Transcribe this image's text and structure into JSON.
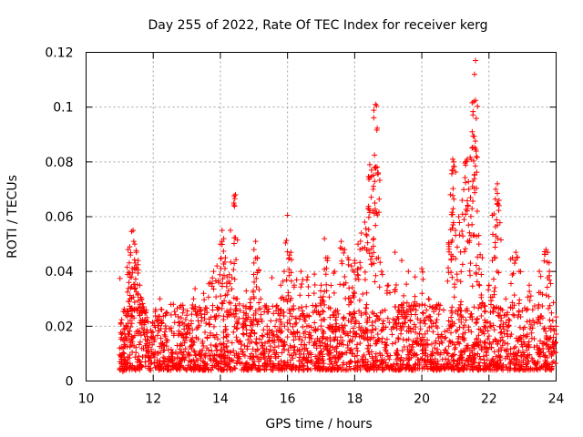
{
  "chart_data": {
    "type": "scatter",
    "title": "Day 255 of 2022, Rate Of TEC Index for receiver kerg",
    "xlabel": "GPS time / hours",
    "ylabel": "ROTI / TECUs",
    "xlim": [
      10,
      24
    ],
    "ylim": [
      0,
      0.12
    ],
    "xticks": [
      10,
      12,
      14,
      16,
      18,
      20,
      22,
      24
    ],
    "xtick_labels": [
      "10",
      "12",
      "14",
      "16",
      "18",
      "20",
      "22",
      "24"
    ],
    "yticks": [
      0,
      0.02,
      0.04,
      0.06,
      0.08,
      0.1,
      0.12
    ],
    "ytick_labels": [
      "0",
      "0.02",
      "0.04",
      "0.06",
      "0.08",
      "0.1",
      "0.12"
    ],
    "grid": true,
    "marker": "plus",
    "color": "#ff0000",
    "series": [
      {
        "name": "ROTI",
        "points": [
          [
            11.0,
            0.012
          ],
          [
            11.05,
            0.008
          ],
          [
            11.1,
            0.015
          ],
          [
            11.15,
            0.006
          ],
          [
            11.2,
            0.02
          ],
          [
            11.25,
            0.048
          ],
          [
            11.3,
            0.049
          ],
          [
            11.32,
            0.046
          ],
          [
            11.35,
            0.038
          ],
          [
            11.4,
            0.055
          ],
          [
            11.42,
            0.051
          ],
          [
            11.45,
            0.05
          ],
          [
            11.5,
            0.047
          ],
          [
            11.55,
            0.044
          ],
          [
            11.6,
            0.035
          ],
          [
            11.65,
            0.03
          ],
          [
            11.7,
            0.026
          ],
          [
            11.75,
            0.022
          ],
          [
            11.8,
            0.018
          ],
          [
            11.9,
            0.014
          ],
          [
            12.0,
            0.016
          ],
          [
            12.1,
            0.022
          ],
          [
            12.2,
            0.03
          ],
          [
            12.4,
            0.025
          ],
          [
            12.6,
            0.028
          ],
          [
            12.8,
            0.027
          ],
          [
            13.0,
            0.024
          ],
          [
            13.2,
            0.03
          ],
          [
            13.5,
            0.032
          ],
          [
            13.7,
            0.036
          ],
          [
            13.8,
            0.04
          ],
          [
            13.9,
            0.042
          ],
          [
            14.0,
            0.05
          ],
          [
            14.05,
            0.055
          ],
          [
            14.1,
            0.052
          ],
          [
            14.15,
            0.045
          ],
          [
            14.2,
            0.038
          ],
          [
            14.3,
            0.055
          ],
          [
            14.4,
            0.065
          ],
          [
            14.45,
            0.068
          ],
          [
            14.5,
            0.03
          ],
          [
            14.7,
            0.025
          ],
          [
            14.9,
            0.03
          ],
          [
            15.0,
            0.048
          ],
          [
            15.05,
            0.051
          ],
          [
            15.1,
            0.045
          ],
          [
            15.2,
            0.03
          ],
          [
            15.5,
            0.022
          ],
          [
            15.8,
            0.035
          ],
          [
            15.9,
            0.04
          ],
          [
            16.0,
            0.0605
          ],
          [
            16.05,
            0.045
          ],
          [
            16.1,
            0.047
          ],
          [
            16.2,
            0.035
          ],
          [
            16.4,
            0.04
          ],
          [
            16.6,
            0.038
          ],
          [
            16.8,
            0.039
          ],
          [
            17.0,
            0.035
          ],
          [
            17.1,
            0.052
          ],
          [
            17.2,
            0.045
          ],
          [
            17.4,
            0.04
          ],
          [
            17.6,
            0.051
          ],
          [
            17.7,
            0.048
          ],
          [
            17.8,
            0.045
          ],
          [
            17.9,
            0.042
          ],
          [
            18.0,
            0.044
          ],
          [
            18.1,
            0.05
          ],
          [
            18.2,
            0.054
          ],
          [
            18.3,
            0.058
          ],
          [
            18.4,
            0.063
          ],
          [
            18.45,
            0.079
          ],
          [
            18.5,
            0.077
          ],
          [
            18.55,
            0.07
          ],
          [
            18.6,
            0.065
          ],
          [
            18.62,
            0.101
          ],
          [
            18.65,
            0.1005
          ],
          [
            18.7,
            0.076
          ],
          [
            18.8,
            0.04
          ],
          [
            19.0,
            0.035
          ],
          [
            19.2,
            0.047
          ],
          [
            19.4,
            0.044
          ],
          [
            19.6,
            0.04
          ],
          [
            19.8,
            0.038
          ],
          [
            20.0,
            0.041
          ],
          [
            20.2,
            0.03
          ],
          [
            20.5,
            0.028
          ],
          [
            20.8,
            0.05
          ],
          [
            20.85,
            0.068
          ],
          [
            20.9,
            0.077
          ],
          [
            20.92,
            0.081
          ],
          [
            20.95,
            0.08
          ],
          [
            21.0,
            0.055
          ],
          [
            21.1,
            0.06
          ],
          [
            21.2,
            0.066
          ],
          [
            21.3,
            0.08
          ],
          [
            21.35,
            0.081
          ],
          [
            21.4,
            0.07
          ],
          [
            21.45,
            0.067
          ],
          [
            21.5,
            0.091
          ],
          [
            21.55,
            0.102
          ],
          [
            21.57,
            0.112
          ],
          [
            21.6,
            0.117
          ],
          [
            21.65,
            0.062
          ],
          [
            21.7,
            0.05
          ],
          [
            21.8,
            0.045
          ],
          [
            22.0,
            0.035
          ],
          [
            22.1,
            0.044
          ],
          [
            22.15,
            0.061
          ],
          [
            22.2,
            0.07
          ],
          [
            22.25,
            0.072
          ],
          [
            22.3,
            0.066
          ],
          [
            22.5,
            0.03
          ],
          [
            22.7,
            0.045
          ],
          [
            22.8,
            0.047
          ],
          [
            22.9,
            0.04
          ],
          [
            23.2,
            0.035
          ],
          [
            23.5,
            0.04
          ],
          [
            23.7,
            0.048
          ],
          [
            23.75,
            0.047
          ],
          [
            23.8,
            0.04
          ],
          [
            23.9,
            0.022
          ],
          [
            24.0,
            0.02
          ]
        ],
        "baseline": {
          "x_start": 11.0,
          "x_end": 24.0,
          "typical_low": 0.004,
          "typical_high": 0.028
        }
      }
    ]
  }
}
